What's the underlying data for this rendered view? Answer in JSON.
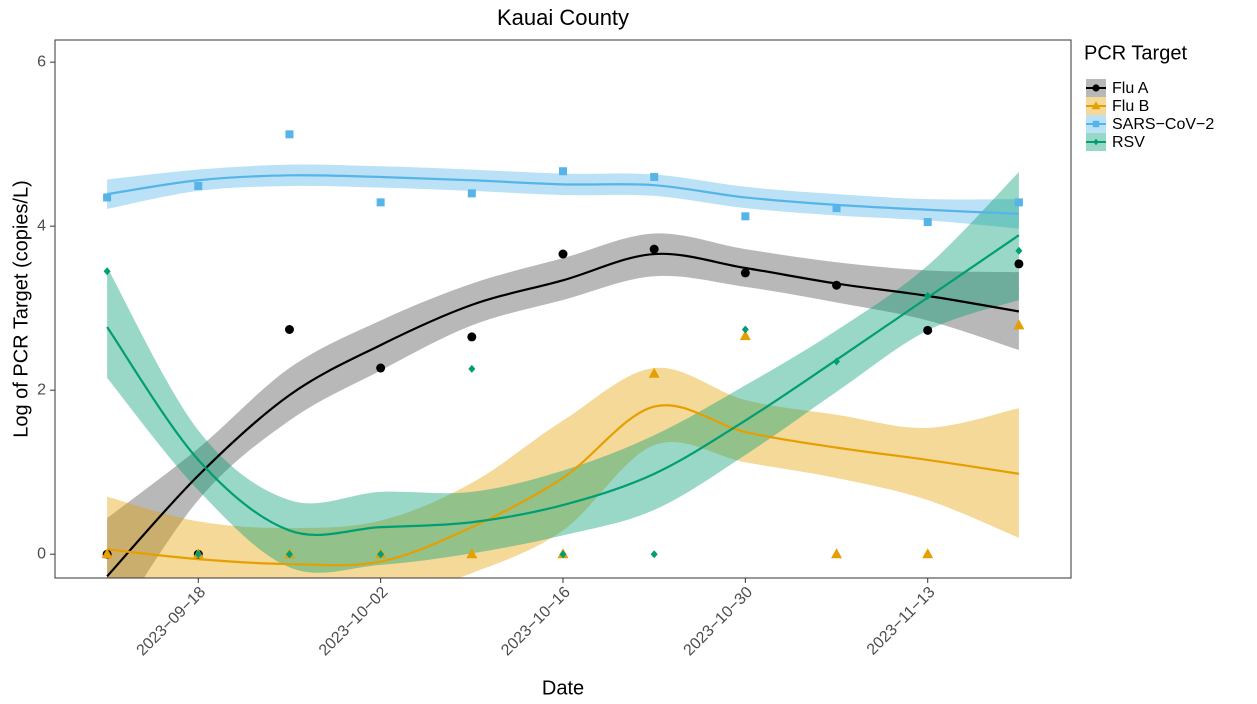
{
  "chart_data": {
    "type": "line",
    "title": "Kauai County",
    "x_label": "Date",
    "y_label": "Log of PCR Target (copies/L)",
    "legend_title": "PCR Target",
    "legend_position": "right",
    "grid": false,
    "x": [
      "2023-09-11",
      "2023-09-18",
      "2023-09-25",
      "2023-10-02",
      "2023-10-09",
      "2023-10-16",
      "2023-10-23",
      "2023-10-30",
      "2023-11-06",
      "2023-11-13",
      "2023-11-20"
    ],
    "xlim": [
      "2023-09-07",
      "2023-11-24"
    ],
    "xticks": [
      {
        "value": "2023-09-18",
        "label": "2023−09−18"
      },
      {
        "value": "2023-10-02",
        "label": "2023−10−02"
      },
      {
        "value": "2023-10-16",
        "label": "2023−10−16"
      },
      {
        "value": "2023-10-30",
        "label": "2023−10−30"
      },
      {
        "value": "2023-11-13",
        "label": "2023−11−13"
      }
    ],
    "ylim": [
      -0.29,
      6.27
    ],
    "yticks": [
      0,
      2,
      4,
      6
    ],
    "series": [
      {
        "name": "Flu A",
        "color": "#000000",
        "ribbon_color": "#4d4d4d",
        "marker": "circle",
        "values": [
          0,
          0,
          2.74,
          2.27,
          2.65,
          3.66,
          3.72,
          3.43,
          3.28,
          2.73,
          3.54
        ],
        "fit": [
          -0.27,
          0.96,
          1.94,
          2.55,
          3.04,
          3.34,
          3.66,
          3.49,
          3.3,
          3.15,
          2.96
        ],
        "upper": [
          0.44,
          1.29,
          2.27,
          2.85,
          3.3,
          3.61,
          3.91,
          3.72,
          3.56,
          3.46,
          3.44
        ],
        "lower": [
          -1.0,
          0.66,
          1.63,
          2.24,
          2.79,
          3.1,
          3.39,
          3.26,
          3.07,
          2.85,
          2.49
        ]
      },
      {
        "name": "Flu B",
        "color": "#E69F00",
        "ribbon_color": "#E69F00",
        "marker": "triangle",
        "values": [
          0,
          0,
          0,
          0,
          0,
          0,
          2.2,
          2.66,
          0,
          0,
          2.79
        ],
        "fit": [
          0.06,
          -0.06,
          -0.12,
          -0.09,
          0.33,
          0.93,
          1.8,
          1.49,
          1.3,
          1.15,
          0.98
        ],
        "upper": [
          0.7,
          0.4,
          0.32,
          0.41,
          0.87,
          1.63,
          2.27,
          1.88,
          1.7,
          1.54,
          1.78
        ],
        "lower": [
          -0.56,
          -0.56,
          -0.62,
          -0.56,
          -0.23,
          0.29,
          1.33,
          1.12,
          0.93,
          0.66,
          0.2
        ]
      },
      {
        "name": "SARS−CoV−2",
        "color": "#56B4E9",
        "ribbon_color": "#56B4E9",
        "marker": "square",
        "values": [
          4.35,
          4.49,
          5.12,
          4.29,
          4.4,
          4.67,
          4.6,
          4.12,
          4.22,
          4.05,
          4.29
        ],
        "fit": [
          4.39,
          4.56,
          4.62,
          4.6,
          4.56,
          4.51,
          4.5,
          4.35,
          4.26,
          4.2,
          4.15
        ],
        "upper": [
          4.57,
          4.69,
          4.75,
          4.73,
          4.69,
          4.64,
          4.63,
          4.48,
          4.39,
          4.33,
          4.33
        ],
        "lower": [
          4.21,
          4.43,
          4.49,
          4.47,
          4.43,
          4.38,
          4.37,
          4.22,
          4.13,
          4.07,
          3.97
        ]
      },
      {
        "name": "RSV",
        "color": "#009E73",
        "ribbon_color": "#009E73",
        "marker": "diamond",
        "values": [
          3.45,
          0,
          0,
          0,
          2.26,
          0,
          0,
          2.74,
          2.35,
          3.15,
          3.7
        ],
        "fit": [
          2.77,
          1.15,
          0.29,
          0.33,
          0.39,
          0.6,
          0.98,
          1.63,
          2.37,
          3.13,
          3.89
        ],
        "upper": [
          3.5,
          1.51,
          0.66,
          0.76,
          0.76,
          1.02,
          1.45,
          2.06,
          2.73,
          3.52,
          4.66
        ],
        "lower": [
          2.15,
          0.78,
          -0.16,
          -0.13,
          0.01,
          0.23,
          0.54,
          1.21,
          1.98,
          2.73,
          3.1
        ]
      }
    ]
  }
}
